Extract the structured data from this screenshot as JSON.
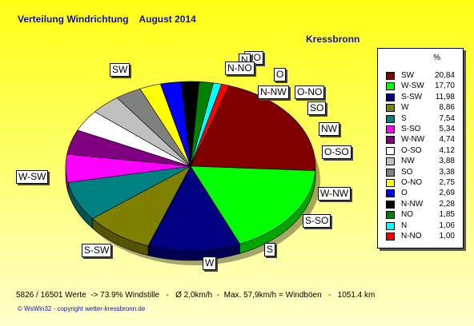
{
  "header": {
    "title": "Verteilung Windrichtung    August 2014",
    "location": "Kressbronn"
  },
  "legend": {
    "unit_header": "%"
  },
  "chart_data": {
    "type": "pie",
    "style": "3d-tilted",
    "title": "Verteilung Windrichtung August 2014",
    "slices": [
      {
        "label": "SW",
        "value": 20.84,
        "value_text": "20,84",
        "color": "#800000"
      },
      {
        "label": "W-SW",
        "value": 17.7,
        "value_text": "17,70",
        "color": "#00ff00"
      },
      {
        "label": "S-SW",
        "value": 11.98,
        "value_text": "11,98",
        "color": "#000080"
      },
      {
        "label": "W",
        "value": 8.86,
        "value_text": "8,86",
        "color": "#808000"
      },
      {
        "label": "S",
        "value": 7.54,
        "value_text": "7,54",
        "color": "#008080"
      },
      {
        "label": "S-SO",
        "value": 5.34,
        "value_text": "5,34",
        "color": "#ff00ff"
      },
      {
        "label": "W-NW",
        "value": 4.74,
        "value_text": "4,74",
        "color": "#800080"
      },
      {
        "label": "O-SO",
        "value": 4.12,
        "value_text": "4,12",
        "color": "#ffffff"
      },
      {
        "label": "NW",
        "value": 3.88,
        "value_text": "3,88",
        "color": "#c0c0c0"
      },
      {
        "label": "SO",
        "value": 3.38,
        "value_text": "3,38",
        "color": "#808080"
      },
      {
        "label": "O-NO",
        "value": 2.75,
        "value_text": "2,75",
        "color": "#ffff00"
      },
      {
        "label": "O",
        "value": 2.69,
        "value_text": "2,69",
        "color": "#0000ff"
      },
      {
        "label": "N-NW",
        "value": 2.28,
        "value_text": "2,28",
        "color": "#000000"
      },
      {
        "label": "NO",
        "value": 1.85,
        "value_text": "1,85",
        "color": "#008000"
      },
      {
        "label": "N",
        "value": 1.06,
        "value_text": "1,06",
        "color": "#00ffff"
      },
      {
        "label": "N-NO",
        "value": 1.0,
        "value_text": "1,00",
        "color": "#ff0000"
      }
    ],
    "legend_position": "right"
  },
  "footer": {
    "stats": "5826 / 16501 Werte  -> 73.9% Windstille   -   Ø 2,0km/h  -  Max. 57,9km/h = Windböen   -   1051.4 km",
    "copyright": "© WsWin32  -  copyright wetter-kressbronn.de"
  }
}
